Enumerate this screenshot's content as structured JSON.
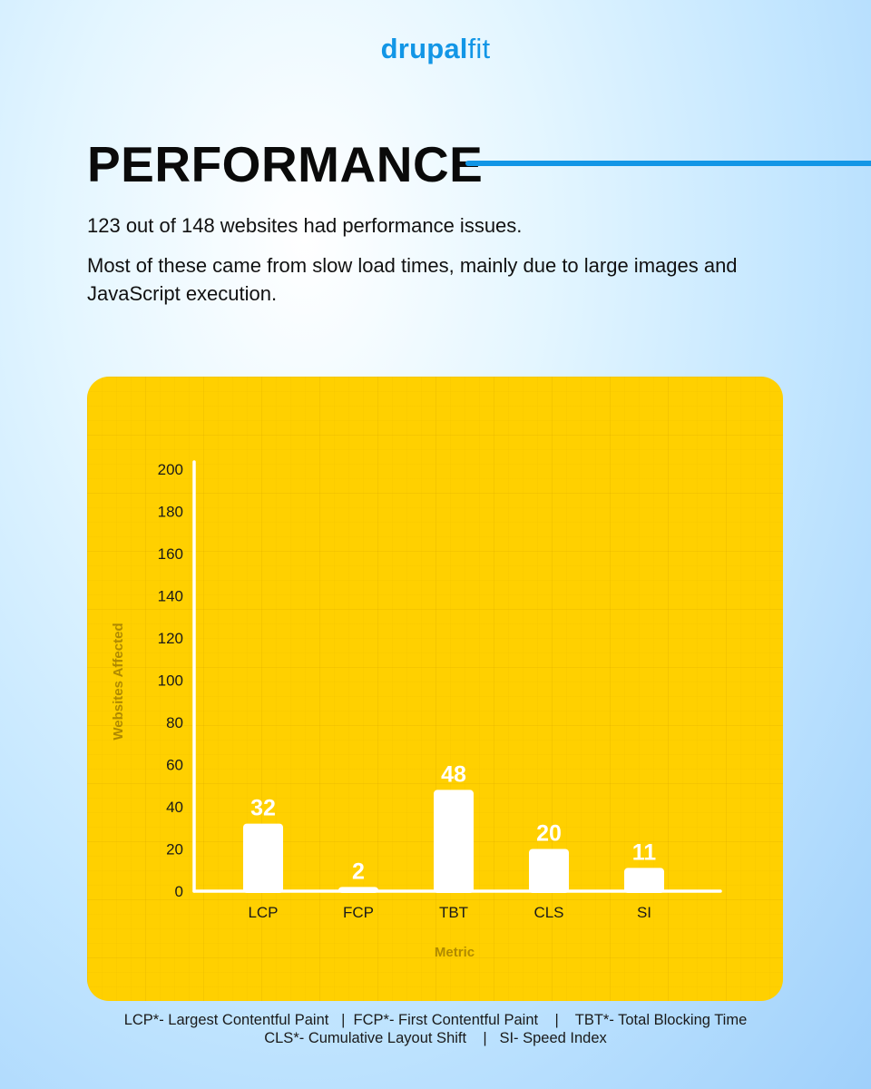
{
  "brand": {
    "part1": "drupal",
    "part2": "fit"
  },
  "header": {
    "title": "PERFORMANCE"
  },
  "intro": {
    "line1": "123 out of 148 websites had performance issues.",
    "line2": "Most of these came from slow load times, mainly due to large images and JavaScript execution."
  },
  "colors": {
    "accent": "#1296e6",
    "chart_bg": "#ffd000",
    "bar": "#ffffff"
  },
  "chart_data": {
    "type": "bar",
    "categories": [
      "LCP",
      "FCP",
      "TBT",
      "CLS",
      "SI"
    ],
    "values": [
      32,
      2,
      48,
      20,
      11
    ],
    "xlabel": "Metric",
    "ylabel": "Websites Affected",
    "ylim": [
      0,
      200
    ],
    "yticks": [
      0,
      20,
      40,
      60,
      80,
      100,
      120,
      140,
      160,
      180,
      200
    ],
    "grid": true,
    "data_labels": true
  },
  "footnote": {
    "line1": "LCP*- Largest Contentful Paint   |  FCP*- First Contentful Paint    |    TBT*- Total Blocking Time",
    "line2": "CLS*- Cumulative Layout Shift    |   SI- Speed Index"
  }
}
